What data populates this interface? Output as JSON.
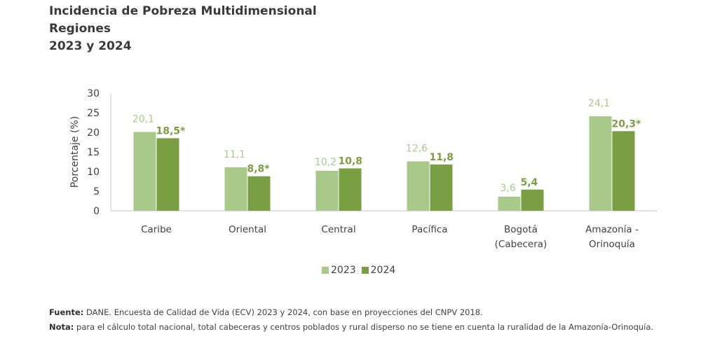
{
  "title": {
    "line1": "Incidencia de Pobreza Multidimensional",
    "line2": "Regiones",
    "line3": "2023 y 2024"
  },
  "colors": {
    "series_2023": "#a9c98a",
    "series_2024": "#7a9e42",
    "axis": "#d9d9d9"
  },
  "chart_data": {
    "type": "bar",
    "title": "Incidencia de Pobreza Multidimensional Regiones 2023 y 2024",
    "xlabel": "",
    "ylabel": "Porcentaje (%)",
    "ylim": [
      0,
      30
    ],
    "yticks": [
      0,
      5,
      10,
      15,
      20,
      25,
      30
    ],
    "grid": false,
    "legend_position": "bottom",
    "categories": [
      [
        "Caribe"
      ],
      [
        "Oriental"
      ],
      [
        "Central"
      ],
      [
        "Pacífica"
      ],
      [
        "Bogotá",
        "(Cabecera)"
      ],
      [
        "Amazonía -",
        "Orinoquía"
      ]
    ],
    "series": [
      {
        "name": "2023",
        "values": [
          20.1,
          11.1,
          10.2,
          12.6,
          3.6,
          24.1
        ],
        "labels": [
          "20,1",
          "11,1",
          "10,2",
          "12,6",
          "3,6",
          "24,1"
        ]
      },
      {
        "name": "2024",
        "values": [
          18.5,
          8.8,
          10.8,
          11.8,
          5.4,
          20.3
        ],
        "labels": [
          "18,5*",
          "8,8*",
          "10,8",
          "11,8",
          "5,4",
          "20,3*"
        ]
      }
    ]
  },
  "legend": {
    "items": [
      "2023",
      "2024"
    ]
  },
  "footer": {
    "source_label": "Fuente:",
    "source_text": " DANE. Encuesta de Calidad de Vida (ECV) 2023 y 2024, con base en proyecciones del CNPV 2018.",
    "note_label": "Nota:",
    "note_text": " para el cálculo total nacional, total cabeceras y centros poblados y rural disperso no se tiene en cuenta la ruralidad de la Amazonía-Orinoquía."
  }
}
